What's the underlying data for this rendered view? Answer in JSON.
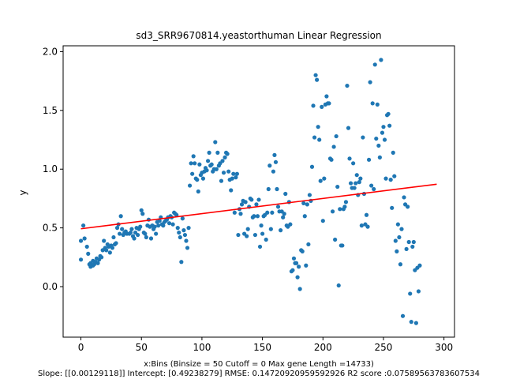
{
  "chart_data": {
    "type": "scatter",
    "title": "sd3_SRR9670814.yeastorthuman Linear Regression",
    "xlabel": "x:Bins  (Binsize = 50 Cutoff = 0 Max gene Length =14733)",
    "ylabel": "y",
    "footer": "Slope: [[0.00129118]] Intercept: [0.49238279] RMSE: 0.14720920959592926 R2 score :0.07589563783607534",
    "xlim": [
      -14.7,
      308.7
    ],
    "ylim": [
      -0.43,
      2.05
    ],
    "xticks": [
      0,
      50,
      100,
      150,
      200,
      250,
      300
    ],
    "yticks": [
      0.0,
      0.5,
      1.0,
      1.5,
      2.0
    ],
    "ytick_labels": [
      "0.0",
      "0.5",
      "1.0",
      "1.5",
      "2.0"
    ],
    "grid": false,
    "colors": {
      "points": "#1f77b4",
      "line": "#ff0000"
    },
    "regression": {
      "slope": 0.00129118,
      "intercept": 0.49238279,
      "x_range": [
        0,
        294
      ]
    },
    "points": [
      [
        0,
        0.23
      ],
      [
        0,
        0.39
      ],
      [
        2,
        0.52
      ],
      [
        3,
        0.41
      ],
      [
        5,
        0.34
      ],
      [
        6,
        0.28
      ],
      [
        7,
        0.19
      ],
      [
        8,
        0.17
      ],
      [
        8,
        0.2
      ],
      [
        9,
        0.18
      ],
      [
        10,
        0.22
      ],
      [
        10,
        0.18
      ],
      [
        11,
        0.19
      ],
      [
        12,
        0.21
      ],
      [
        13,
        0.24
      ],
      [
        14,
        0.2
      ],
      [
        15,
        0.23
      ],
      [
        16,
        0.26
      ],
      [
        17,
        0.25
      ],
      [
        18,
        0.31
      ],
      [
        19,
        0.39
      ],
      [
        20,
        0.33
      ],
      [
        21,
        0.31
      ],
      [
        22,
        0.36
      ],
      [
        23,
        0.34
      ],
      [
        24,
        0.29
      ],
      [
        25,
        0.35
      ],
      [
        26,
        0.33
      ],
      [
        27,
        0.42
      ],
      [
        28,
        0.36
      ],
      [
        29,
        0.37
      ],
      [
        30,
        0.5
      ],
      [
        31,
        0.53
      ],
      [
        32,
        0.45
      ],
      [
        33,
        0.6
      ],
      [
        34,
        0.49
      ],
      [
        35,
        0.44
      ],
      [
        36,
        0.46
      ],
      [
        37,
        0.47
      ],
      [
        38,
        0.45
      ],
      [
        40,
        0.45
      ],
      [
        41,
        0.46
      ],
      [
        42,
        0.49
      ],
      [
        43,
        0.43
      ],
      [
        44,
        0.41
      ],
      [
        45,
        0.46
      ],
      [
        46,
        0.5
      ],
      [
        47,
        0.44
      ],
      [
        48,
        0.49
      ],
      [
        49,
        0.51
      ],
      [
        50,
        0.65
      ],
      [
        51,
        0.62
      ],
      [
        52,
        0.46
      ],
      [
        53,
        0.45
      ],
      [
        54,
        0.42
      ],
      [
        55,
        0.52
      ],
      [
        56,
        0.57
      ],
      [
        57,
        0.51
      ],
      [
        58,
        0.41
      ],
      [
        59,
        0.52
      ],
      [
        60,
        0.49
      ],
      [
        61,
        0.51
      ],
      [
        62,
        0.45
      ],
      [
        63,
        0.55
      ],
      [
        64,
        0.52
      ],
      [
        65,
        0.56
      ],
      [
        66,
        0.59
      ],
      [
        67,
        0.53
      ],
      [
        68,
        0.52
      ],
      [
        69,
        0.55
      ],
      [
        70,
        0.56
      ],
      [
        71,
        0.57
      ],
      [
        72,
        0.59
      ],
      [
        73,
        0.54
      ],
      [
        74,
        0.6
      ],
      [
        75,
        0.59
      ],
      [
        76,
        0.53
      ],
      [
        77,
        0.63
      ],
      [
        78,
        0.62
      ],
      [
        79,
        0.61
      ],
      [
        80,
        0.5
      ],
      [
        81,
        0.46
      ],
      [
        82,
        0.42
      ],
      [
        83,
        0.21
      ],
      [
        84,
        0.58
      ],
      [
        85,
        0.48
      ],
      [
        86,
        0.44
      ],
      [
        87,
        0.39
      ],
      [
        88,
        0.33
      ],
      [
        89,
        0.5
      ],
      [
        90,
        0.86
      ],
      [
        91,
        1.05
      ],
      [
        92,
        0.96
      ],
      [
        93,
        1.11
      ],
      [
        94,
        1.05
      ],
      [
        95,
        0.92
      ],
      [
        96,
        0.91
      ],
      [
        97,
        0.81
      ],
      [
        98,
        1.04
      ],
      [
        99,
        0.95
      ],
      [
        100,
        0.97
      ],
      [
        101,
        0.92
      ],
      [
        102,
        0.98
      ],
      [
        103,
        1.01
      ],
      [
        104,
        0.99
      ],
      [
        105,
        1.07
      ],
      [
        106,
        1.14
      ],
      [
        107,
        1.03
      ],
      [
        108,
        1.04
      ],
      [
        109,
        0.98
      ],
      [
        110,
        1.0
      ],
      [
        111,
        1.23
      ],
      [
        112,
        1.0
      ],
      [
        113,
        1.14
      ],
      [
        114,
        1.03
      ],
      [
        115,
        1.05
      ],
      [
        116,
        0.9
      ],
      [
        117,
        1.07
      ],
      [
        118,
        0.97
      ],
      [
        119,
        1.1
      ],
      [
        120,
        1.14
      ],
      [
        121,
        1.13
      ],
      [
        122,
        0.98
      ],
      [
        123,
        0.91
      ],
      [
        124,
        0.82
      ],
      [
        125,
        0.92
      ],
      [
        126,
        0.96
      ],
      [
        127,
        0.63
      ],
      [
        128,
        0.93
      ],
      [
        129,
        0.96
      ],
      [
        130,
        0.44
      ],
      [
        131,
        0.66
      ],
      [
        132,
        0.62
      ],
      [
        133,
        0.7
      ],
      [
        134,
        0.73
      ],
      [
        135,
        0.45
      ],
      [
        136,
        0.72
      ],
      [
        137,
        0.43
      ],
      [
        138,
        0.49
      ],
      [
        139,
        0.68
      ],
      [
        140,
        0.75
      ],
      [
        141,
        0.74
      ],
      [
        142,
        0.59
      ],
      [
        143,
        0.6
      ],
      [
        144,
        0.44
      ],
      [
        145,
        0.7
      ],
      [
        146,
        0.6
      ],
      [
        147,
        0.74
      ],
      [
        148,
        0.34
      ],
      [
        149,
        0.52
      ],
      [
        150,
        0.45
      ],
      [
        151,
        0.6
      ],
      [
        152,
        0.61
      ],
      [
        153,
        0.4
      ],
      [
        154,
        0.63
      ],
      [
        155,
        0.83
      ],
      [
        156,
        1.03
      ],
      [
        157,
        0.49
      ],
      [
        158,
        0.63
      ],
      [
        159,
        0.98
      ],
      [
        160,
        1.12
      ],
      [
        161,
        1.06
      ],
      [
        162,
        0.83
      ],
      [
        163,
        0.68
      ],
      [
        164,
        0.64
      ],
      [
        165,
        0.48
      ],
      [
        166,
        0.64
      ],
      [
        167,
        0.59
      ],
      [
        168,
        0.62
      ],
      [
        169,
        0.79
      ],
      [
        170,
        0.52
      ],
      [
        171,
        0.51
      ],
      [
        172,
        0.72
      ],
      [
        173,
        0.53
      ],
      [
        174,
        0.13
      ],
      [
        175,
        0.14
      ],
      [
        176,
        0.24
      ],
      [
        177,
        0.2
      ],
      [
        178,
        0.2
      ],
      [
        179,
        0.08
      ],
      [
        180,
        0.17
      ],
      [
        181,
        -0.02
      ],
      [
        182,
        0.31
      ],
      [
        183,
        0.3
      ],
      [
        184,
        0.71
      ],
      [
        185,
        0.6
      ],
      [
        186,
        0.18
      ],
      [
        187,
        0.7
      ],
      [
        188,
        0.36
      ],
      [
        189,
        0.78
      ],
      [
        190,
        0.73
      ],
      [
        191,
        1.02
      ],
      [
        192,
        1.54
      ],
      [
        193,
        1.27
      ],
      [
        194,
        1.8
      ],
      [
        195,
        1.76
      ],
      [
        196,
        1.36
      ],
      [
        197,
        1.25
      ],
      [
        198,
        0.9
      ],
      [
        199,
        1.53
      ],
      [
        200,
        0.56
      ],
      [
        201,
        0.92
      ],
      [
        202,
        1.55
      ],
      [
        203,
        1.62
      ],
      [
        204,
        1.56
      ],
      [
        205,
        1.56
      ],
      [
        206,
        1.09
      ],
      [
        207,
        1.08
      ],
      [
        208,
        0.64
      ],
      [
        209,
        1.19
      ],
      [
        210,
        0.4
      ],
      [
        211,
        1.28
      ],
      [
        212,
        0.85
      ],
      [
        213,
        0.01
      ],
      [
        214,
        0.66
      ],
      [
        215,
        0.35
      ],
      [
        216,
        0.35
      ],
      [
        217,
        0.66
      ],
      [
        218,
        0.68
      ],
      [
        219,
        0.72
      ],
      [
        220,
        1.71
      ],
      [
        221,
        1.35
      ],
      [
        222,
        1.09
      ],
      [
        223,
        0.88
      ],
      [
        224,
        0.84
      ],
      [
        225,
        1.05
      ],
      [
        226,
        0.84
      ],
      [
        227,
        0.88
      ],
      [
        228,
        0.95
      ],
      [
        229,
        0.78
      ],
      [
        230,
        0.89
      ],
      [
        231,
        0.92
      ],
      [
        232,
        0.52
      ],
      [
        233,
        1.27
      ],
      [
        234,
        0.79
      ],
      [
        235,
        0.53
      ],
      [
        236,
        0.61
      ],
      [
        237,
        0.51
      ],
      [
        238,
        1.08
      ],
      [
        239,
        1.74
      ],
      [
        240,
        0.86
      ],
      [
        241,
        1.56
      ],
      [
        242,
        0.83
      ],
      [
        243,
        1.89
      ],
      [
        244,
        1.26
      ],
      [
        245,
        1.55
      ],
      [
        246,
        1.2
      ],
      [
        247,
        1.1
      ],
      [
        248,
        1.93
      ],
      [
        249,
        1.31
      ],
      [
        250,
        1.36
      ],
      [
        251,
        1.25
      ],
      [
        252,
        0.92
      ],
      [
        253,
        1.46
      ],
      [
        254,
        1.47
      ],
      [
        255,
        1.37
      ],
      [
        256,
        0.91
      ],
      [
        257,
        0.67
      ],
      [
        258,
        1.14
      ],
      [
        259,
        0.94
      ],
      [
        260,
        0.39
      ],
      [
        261,
        0.3
      ],
      [
        262,
        0.53
      ],
      [
        263,
        0.42
      ],
      [
        264,
        0.19
      ],
      [
        265,
        0.49
      ],
      [
        266,
        -0.25
      ],
      [
        267,
        0.76
      ],
      [
        268,
        0.7
      ],
      [
        269,
        0.32
      ],
      [
        270,
        0.68
      ],
      [
        271,
        0.38
      ],
      [
        272,
        -0.06
      ],
      [
        273,
        -0.3
      ],
      [
        274,
        0.34
      ],
      [
        275,
        0.38
      ],
      [
        276,
        0.14
      ],
      [
        277,
        -0.31
      ],
      [
        278,
        0.16
      ],
      [
        279,
        -0.04
      ],
      [
        280,
        0.18
      ]
    ]
  }
}
